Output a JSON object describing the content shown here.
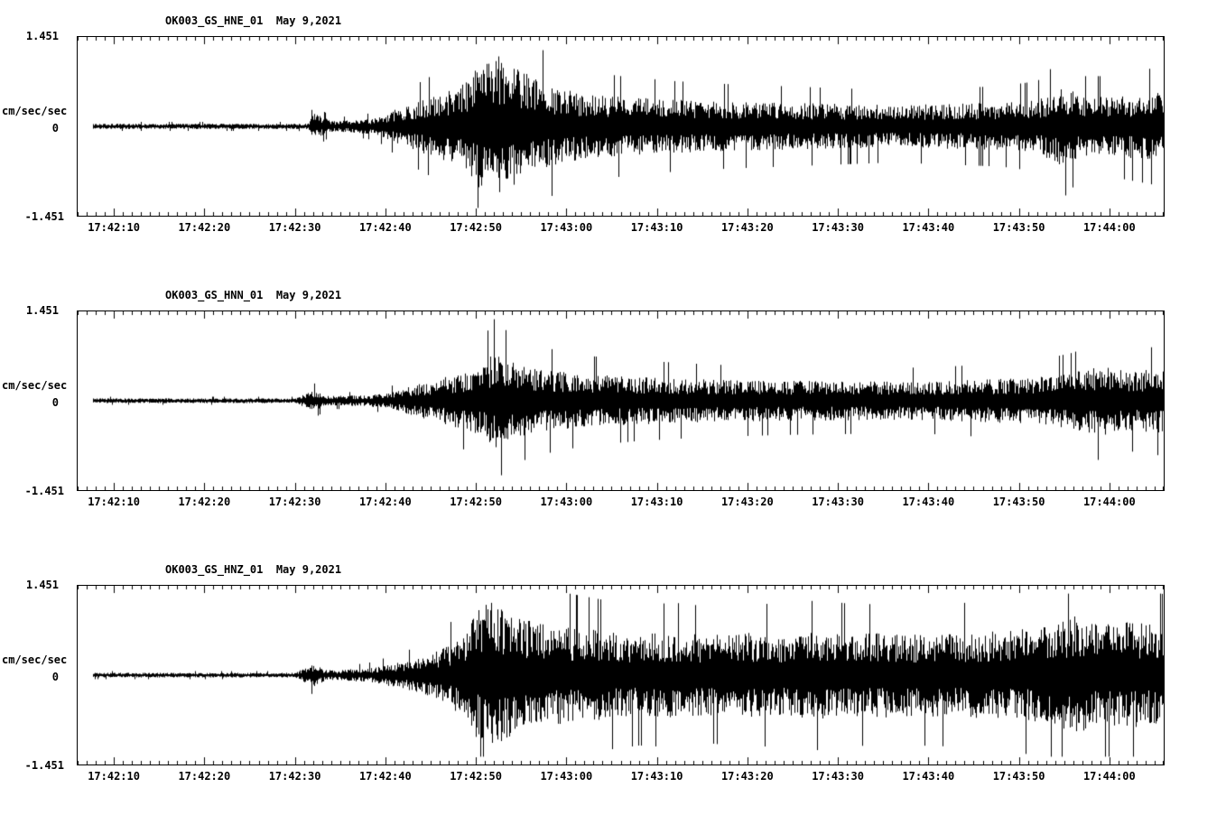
{
  "page": {
    "background": "#ffffff",
    "trace_color": "#000000"
  },
  "chart_data": [
    {
      "type": "line",
      "subtype": "seismogram",
      "title": "OK003_GS_HNE_01  May 9,2021",
      "station_channel": "OK003_GS_HNE_01",
      "date": "May 9,2021",
      "ylabel": "cm/sec/sec",
      "ylim": [
        -1.451,
        1.451
      ],
      "ytick_labels": [
        "1.451",
        "0",
        "-1.451"
      ],
      "xtick_labels": [
        "17:42:10",
        "17:42:20",
        "17:42:30",
        "17:42:40",
        "17:42:50",
        "17:43:00",
        "17:43:10",
        "17:43:20",
        "17:43:30",
        "17:43:40",
        "17:43:50",
        "17:44:00"
      ],
      "x_first_tick_s": 4,
      "x_tick_interval_s": 10,
      "x_span_s": 120,
      "trace_start_s": 1.6,
      "grid": false,
      "legend": "none",
      "amplitude_envelope": [
        [
          0,
          0.045
        ],
        [
          24,
          0.045
        ],
        [
          25.5,
          0.05
        ],
        [
          26,
          0.22
        ],
        [
          27,
          0.16
        ],
        [
          28,
          0.09
        ],
        [
          30,
          0.1
        ],
        [
          33,
          0.14
        ],
        [
          36,
          0.35
        ],
        [
          39,
          0.5
        ],
        [
          42,
          0.65
        ],
        [
          44,
          1.0
        ],
        [
          46,
          1.25
        ],
        [
          48,
          1.05
        ],
        [
          50,
          0.85
        ],
        [
          53,
          0.65
        ],
        [
          56,
          0.55
        ],
        [
          60,
          0.5
        ],
        [
          66,
          0.45
        ],
        [
          72,
          0.42
        ],
        [
          78,
          0.4
        ],
        [
          84,
          0.38
        ],
        [
          90,
          0.36
        ],
        [
          96,
          0.38
        ],
        [
          102,
          0.4
        ],
        [
          106,
          0.45
        ],
        [
          109,
          0.7
        ],
        [
          111,
          0.5
        ],
        [
          114,
          0.5
        ],
        [
          117,
          0.55
        ],
        [
          120,
          0.6
        ]
      ]
    },
    {
      "type": "line",
      "subtype": "seismogram",
      "title": "OK003_GS_HNN_01  May 9,2021",
      "station_channel": "OK003_GS_HNN_01",
      "date": "May 9,2021",
      "ylabel": "cm/sec/sec",
      "ylim": [
        -1.451,
        1.451
      ],
      "ytick_labels": [
        "1.451",
        "0",
        "-1.451"
      ],
      "xtick_labels": [
        "17:42:10",
        "17:42:20",
        "17:42:30",
        "17:42:40",
        "17:42:50",
        "17:43:00",
        "17:43:10",
        "17:43:20",
        "17:43:30",
        "17:43:40",
        "17:43:50",
        "17:44:00"
      ],
      "x_first_tick_s": 4,
      "x_tick_interval_s": 10,
      "x_span_s": 120,
      "trace_start_s": 1.6,
      "grid": false,
      "legend": "none",
      "amplitude_envelope": [
        [
          0,
          0.04
        ],
        [
          24,
          0.04
        ],
        [
          26,
          0.18
        ],
        [
          27,
          0.12
        ],
        [
          28,
          0.08
        ],
        [
          31,
          0.09
        ],
        [
          34,
          0.12
        ],
        [
          37,
          0.25
        ],
        [
          40,
          0.38
        ],
        [
          43,
          0.5
        ],
        [
          45,
          0.65
        ],
        [
          46,
          0.82
        ],
        [
          47,
          0.72
        ],
        [
          49,
          0.6
        ],
        [
          52,
          0.52
        ],
        [
          56,
          0.45
        ],
        [
          62,
          0.4
        ],
        [
          70,
          0.36
        ],
        [
          78,
          0.34
        ],
        [
          86,
          0.33
        ],
        [
          94,
          0.33
        ],
        [
          100,
          0.36
        ],
        [
          106,
          0.4
        ],
        [
          110,
          0.48
        ],
        [
          113,
          0.6
        ],
        [
          116,
          0.5
        ],
        [
          120,
          0.55
        ]
      ]
    },
    {
      "type": "line",
      "subtype": "seismogram",
      "title": "OK003_GS_HNZ_01  May 9,2021",
      "station_channel": "OK003_GS_HNZ_01",
      "date": "May 9,2021",
      "ylabel": "cm/sec/sec",
      "ylim": [
        -1.451,
        1.451
      ],
      "ytick_labels": [
        "1.451",
        "0",
        "-1.451"
      ],
      "xtick_labels": [
        "17:42:10",
        "17:42:20",
        "17:42:30",
        "17:42:40",
        "17:42:50",
        "17:43:00",
        "17:43:10",
        "17:43:20",
        "17:43:30",
        "17:43:40",
        "17:43:50",
        "17:44:00"
      ],
      "x_first_tick_s": 4,
      "x_tick_interval_s": 10,
      "x_span_s": 120,
      "trace_start_s": 1.6,
      "grid": false,
      "legend": "none",
      "amplitude_envelope": [
        [
          0,
          0.04
        ],
        [
          24,
          0.04
        ],
        [
          26,
          0.2
        ],
        [
          27,
          0.12
        ],
        [
          28,
          0.08
        ],
        [
          32,
          0.12
        ],
        [
          35,
          0.2
        ],
        [
          38,
          0.3
        ],
        [
          41,
          0.5
        ],
        [
          43,
          0.8
        ],
        [
          45,
          1.3
        ],
        [
          47,
          1.1
        ],
        [
          49,
          0.95
        ],
        [
          52,
          0.85
        ],
        [
          55,
          0.8
        ],
        [
          58,
          0.75
        ],
        [
          62,
          0.7
        ],
        [
          66,
          0.72
        ],
        [
          70,
          0.68
        ],
        [
          74,
          0.72
        ],
        [
          78,
          0.7
        ],
        [
          82,
          0.75
        ],
        [
          86,
          0.7
        ],
        [
          90,
          0.72
        ],
        [
          94,
          0.7
        ],
        [
          98,
          0.72
        ],
        [
          102,
          0.75
        ],
        [
          106,
          0.8
        ],
        [
          110,
          1.0
        ],
        [
          113,
          0.85
        ],
        [
          116,
          0.9
        ],
        [
          119,
          0.85
        ],
        [
          120,
          0.8
        ]
      ]
    }
  ]
}
